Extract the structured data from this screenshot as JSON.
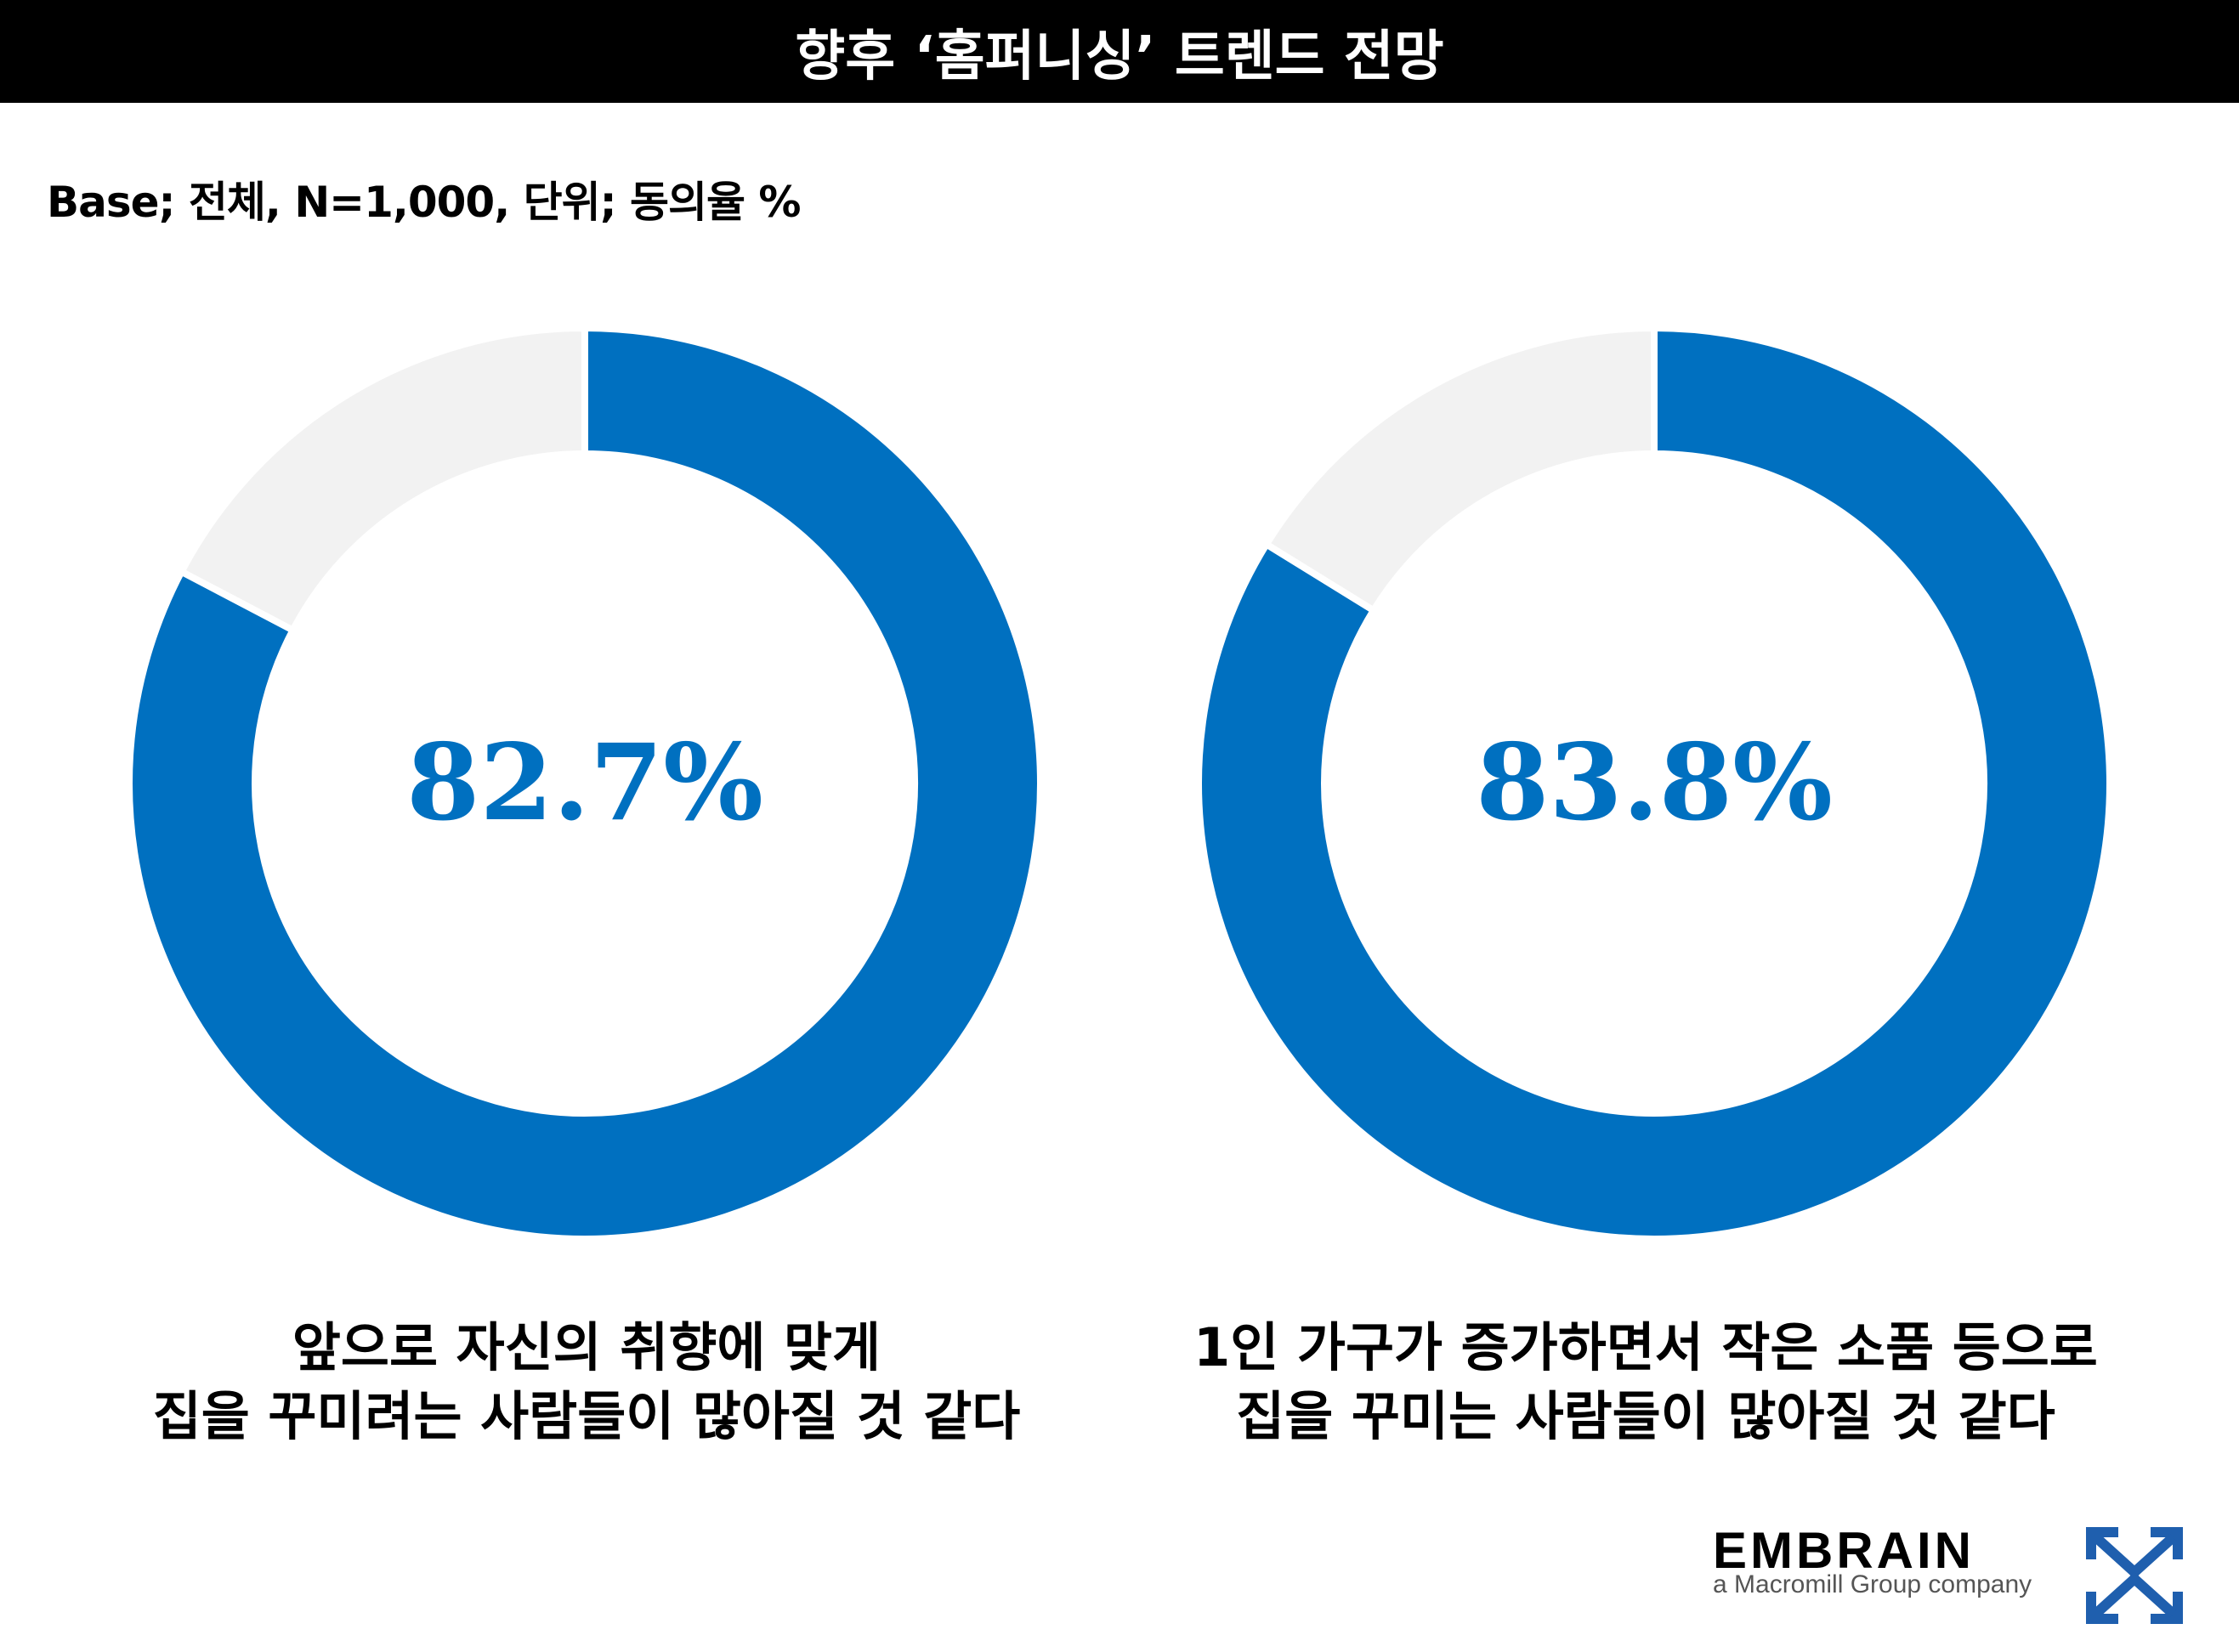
{
  "title": "향후 ‘홈퍼니싱’ 트렌드 전망",
  "base_note": "Base; 전체, N=1,000, 단위; 동의율 %",
  "colors": {
    "agree": "#0070C0",
    "remainder": "#F2F2F2",
    "title_bar": "#000000"
  },
  "chart_data": [
    {
      "type": "pie",
      "variant": "donut",
      "label": "82.7%",
      "slices": [
        {
          "name": "agree",
          "value": 82.7
        },
        {
          "name": "other",
          "value": 17.3
        }
      ],
      "caption_lines": [
        "앞으로 자신의 취향에 맞게",
        "집을 꾸미려는 사람들이 많아질 것 같다"
      ]
    },
    {
      "type": "pie",
      "variant": "donut",
      "label": "83.8%",
      "slices": [
        {
          "name": "agree",
          "value": 83.8
        },
        {
          "name": "other",
          "value": 16.2
        }
      ],
      "caption_lines": [
        "1인 가구가 증가하면서 작은 소품 등으로",
        "집을 꾸미는 사람들이 많아질 것 같다"
      ]
    }
  ],
  "logo": {
    "name": "EMBRAIN",
    "tagline": "a Macromill Group company",
    "icon": "embrain-mark-icon"
  }
}
